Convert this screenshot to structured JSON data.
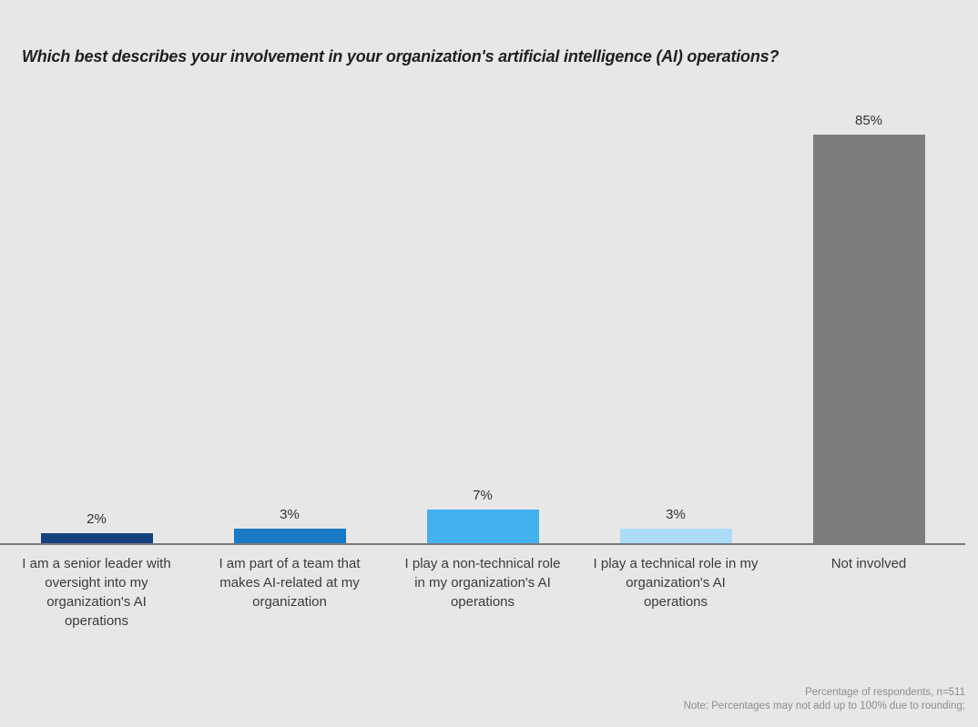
{
  "page": {
    "background": "#e8e7e7"
  },
  "header": {
    "title": "Which best describes your involvement in your organization's artificial intelligence (AI) operations?"
  },
  "chart_data": {
    "type": "bar",
    "title": "Which best describes your involvement in your organization's artificial intelligence (AI) operations?",
    "categories": [
      "I am a senior leader with\noversight into my\norganization's AI\noperations",
      "I am part of a team that\nmakes AI-related at my\norganization",
      "I play a non-technical role\nin my organization's AI\noperations",
      "I play a technical role in my\norganization's AI\noperations",
      "Not involved"
    ],
    "slugs": [
      "senior-leader",
      "team-member",
      "non-technical-role",
      "technical-role",
      "not-involved"
    ],
    "values": [
      2,
      3,
      7,
      3,
      85
    ],
    "value_labels": [
      "2%",
      "3%",
      "7%",
      "3%",
      "85%"
    ],
    "colors": [
      "#15417F",
      "#1A79C4",
      "#44B1EF",
      "#ABDCF8",
      "#7D7D7D"
    ],
    "xlabel": "",
    "ylabel": "Percentage of respondents",
    "ylim": [
      0,
      100
    ],
    "grid": false,
    "legend": false,
    "bar_label_position": "above"
  },
  "footer": {
    "line1": "Percentage of respondents, n=511",
    "line2": "Note: Percentages may not add up to 100% due to rounding;"
  }
}
